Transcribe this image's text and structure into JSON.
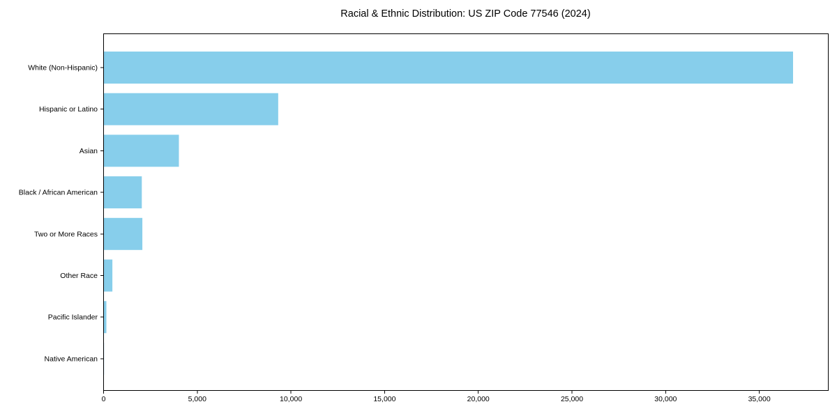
{
  "title": "Racial & Ethnic Distribution: US ZIP Code 77546 (2024)",
  "chart_data": {
    "type": "bar",
    "orientation": "horizontal",
    "title": "Racial & Ethnic Distribution: US ZIP Code 77546 (2024)",
    "xlabel": "",
    "ylabel": "",
    "categories": [
      "White (Non-Hispanic)",
      "Hispanic or Latino",
      "Asian",
      "Black / African American",
      "Two or More Races",
      "Other Race",
      "Pacific Islander",
      "Native American"
    ],
    "values": [
      36800,
      9320,
      4020,
      2040,
      2070,
      470,
      150,
      25
    ],
    "xlim": [
      0,
      38680
    ],
    "xticks": [
      0,
      5000,
      10000,
      15000,
      20000,
      25000,
      30000,
      35000
    ],
    "xtick_labels": [
      "0",
      "5,000",
      "10,000",
      "15,000",
      "20,000",
      "25,000",
      "30,000",
      "35,000"
    ],
    "bar_color": "#87CEEB",
    "axis_color": "#000000",
    "text_color": "#000000",
    "background_color": "#ffffff",
    "grid": false,
    "legend": "none"
  }
}
